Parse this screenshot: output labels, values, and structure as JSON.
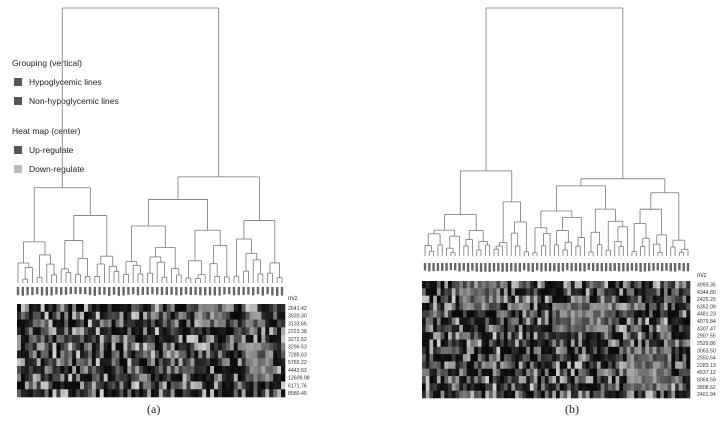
{
  "legend": {
    "grouping_heading": "Grouping (vertical)",
    "grouping_items": [
      {
        "label": "Hypoglycemic lines",
        "color": "#555555"
      },
      {
        "label": "Non-hypoglycemic lines",
        "color": "#555555"
      }
    ],
    "heatmap_heading": "Heat map (center)",
    "heatmap_items": [
      {
        "label": "Up-regulate",
        "color": "#555555"
      },
      {
        "label": "Down-regulate",
        "color": "#bdbdbd"
      }
    ]
  },
  "panels": [
    {
      "caption": "(a)",
      "mz_header": "m/z",
      "mz_labels": [
        "2641.42",
        "3920.30",
        "3132.65",
        "2223.38",
        "3272.52",
        "3296.53",
        "7285.63",
        "5765.22",
        "4442.63",
        "12609.98",
        "6171.76",
        "8580.45"
      ]
    },
    {
      "caption": "(b)",
      "mz_header": "m/z",
      "mz_labels": [
        "4993.36",
        "4344.80",
        "2425.29",
        "6352.09",
        "4481.23",
        "4079.84",
        "4307.47",
        "2907.55",
        "2529.86",
        "3063.50",
        "2550.64",
        "2283.13",
        "4537.12",
        "5064.59",
        "3808.62",
        "2401.94"
      ]
    }
  ]
}
